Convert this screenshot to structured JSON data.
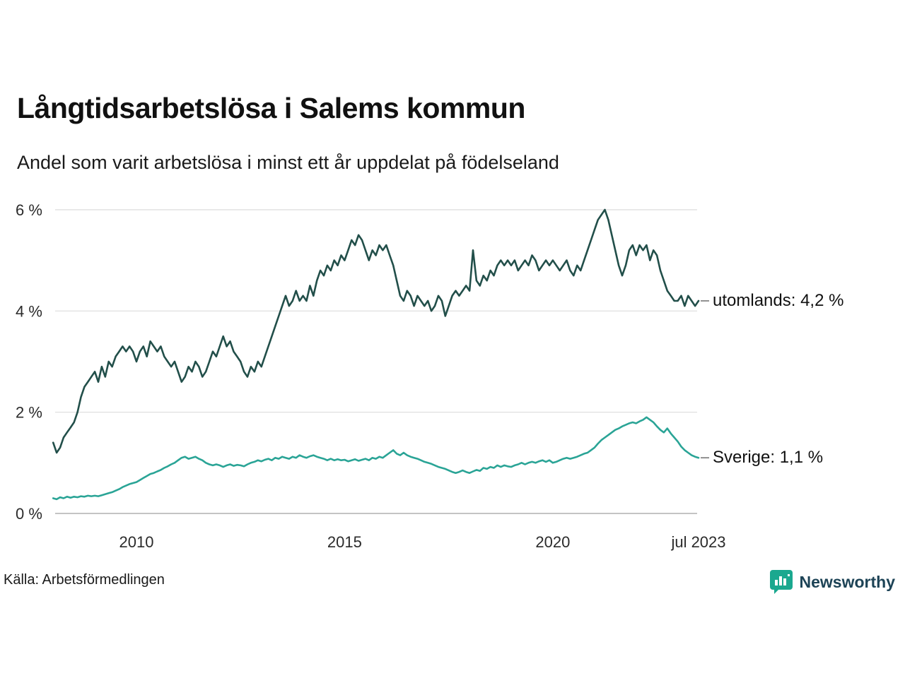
{
  "header": {
    "title": "Långtidsarbetslösa i Salems kommun",
    "subtitle": "Andel som varit arbetslösa i minst ett år uppdelat på födelseland"
  },
  "footer": {
    "source": "Källa: Arbetsförmedlingen",
    "brand": "Newsworthy",
    "brand_icon": "bar-chart-badge-icon",
    "brand_icon_color": "#1aa88f",
    "brand_text_color": "#1d4356"
  },
  "chart_data": {
    "type": "line",
    "title": "Långtidsarbetslösa i Salems kommun",
    "subtitle": "Andel som varit arbetslösa i minst ett år uppdelat på födelseland",
    "grid": "horizontal",
    "legend_position": "right-end-labels",
    "xlim": [
      2007.9,
      2023.6
    ],
    "ylim": [
      0,
      6.3
    ],
    "x_start_year": 2008.0,
    "x_step_years": 0.0833333,
    "x_ticks": [
      {
        "value": 2010,
        "label": "2010"
      },
      {
        "value": 2015,
        "label": "2015"
      },
      {
        "value": 2020,
        "label": "2020"
      },
      {
        "value": 2023.5,
        "label": "jul 2023"
      }
    ],
    "y_ticks": [
      {
        "value": 0,
        "label": "0 %"
      },
      {
        "value": 2,
        "label": "2 %"
      },
      {
        "value": 4,
        "label": "4 %"
      },
      {
        "value": 6,
        "label": "6 %"
      }
    ],
    "series": [
      {
        "name": "utomlands",
        "label": "utomlands: 4,2 %",
        "last_value_label": "4,2 %",
        "color": "#224f4a",
        "values": [
          1.4,
          1.2,
          1.3,
          1.5,
          1.6,
          1.7,
          1.8,
          2.0,
          2.3,
          2.5,
          2.6,
          2.7,
          2.8,
          2.6,
          2.9,
          2.7,
          3.0,
          2.9,
          3.1,
          3.2,
          3.3,
          3.2,
          3.3,
          3.2,
          3.0,
          3.2,
          3.3,
          3.1,
          3.4,
          3.3,
          3.2,
          3.3,
          3.1,
          3.0,
          2.9,
          3.0,
          2.8,
          2.6,
          2.7,
          2.9,
          2.8,
          3.0,
          2.9,
          2.7,
          2.8,
          3.0,
          3.2,
          3.1,
          3.3,
          3.5,
          3.3,
          3.4,
          3.2,
          3.1,
          3.0,
          2.8,
          2.7,
          2.9,
          2.8,
          3.0,
          2.9,
          3.1,
          3.3,
          3.5,
          3.7,
          3.9,
          4.1,
          4.3,
          4.1,
          4.2,
          4.4,
          4.2,
          4.3,
          4.2,
          4.5,
          4.3,
          4.6,
          4.8,
          4.7,
          4.9,
          4.8,
          5.0,
          4.9,
          5.1,
          5.0,
          5.2,
          5.4,
          5.3,
          5.5,
          5.4,
          5.2,
          5.0,
          5.2,
          5.1,
          5.3,
          5.2,
          5.3,
          5.1,
          4.9,
          4.6,
          4.3,
          4.2,
          4.4,
          4.3,
          4.1,
          4.3,
          4.2,
          4.1,
          4.2,
          4.0,
          4.1,
          4.3,
          4.2,
          3.9,
          4.1,
          4.3,
          4.4,
          4.3,
          4.4,
          4.5,
          4.4,
          5.2,
          4.6,
          4.5,
          4.7,
          4.6,
          4.8,
          4.7,
          4.9,
          5.0,
          4.9,
          5.0,
          4.9,
          5.0,
          4.8,
          4.9,
          5.0,
          4.9,
          5.1,
          5.0,
          4.8,
          4.9,
          5.0,
          4.9,
          5.0,
          4.9,
          4.8,
          4.9,
          5.0,
          4.8,
          4.7,
          4.9,
          4.8,
          5.0,
          5.2,
          5.4,
          5.6,
          5.8,
          5.9,
          6.0,
          5.8,
          5.5,
          5.2,
          4.9,
          4.7,
          4.9,
          5.2,
          5.3,
          5.1,
          5.3,
          5.2,
          5.3,
          5.0,
          5.2,
          5.1,
          4.8,
          4.6,
          4.4,
          4.3,
          4.2,
          4.2,
          4.3,
          4.1,
          4.3,
          4.2,
          4.1,
          4.2
        ]
      },
      {
        "name": "Sverige",
        "label": "Sverige: 1,1 %",
        "last_value_label": "1,1 %",
        "color": "#2aa496",
        "values": [
          0.3,
          0.28,
          0.32,
          0.3,
          0.33,
          0.31,
          0.33,
          0.32,
          0.34,
          0.33,
          0.35,
          0.34,
          0.35,
          0.34,
          0.36,
          0.38,
          0.4,
          0.42,
          0.45,
          0.48,
          0.52,
          0.55,
          0.58,
          0.6,
          0.62,
          0.66,
          0.7,
          0.74,
          0.78,
          0.8,
          0.83,
          0.86,
          0.9,
          0.93,
          0.97,
          1.0,
          1.05,
          1.1,
          1.12,
          1.08,
          1.1,
          1.12,
          1.08,
          1.05,
          1.0,
          0.97,
          0.95,
          0.97,
          0.95,
          0.92,
          0.95,
          0.97,
          0.94,
          0.96,
          0.95,
          0.93,
          0.97,
          1.0,
          1.02,
          1.05,
          1.03,
          1.06,
          1.08,
          1.05,
          1.1,
          1.08,
          1.12,
          1.1,
          1.08,
          1.12,
          1.1,
          1.15,
          1.12,
          1.1,
          1.13,
          1.15,
          1.12,
          1.1,
          1.08,
          1.05,
          1.08,
          1.05,
          1.07,
          1.05,
          1.06,
          1.03,
          1.05,
          1.07,
          1.04,
          1.06,
          1.08,
          1.05,
          1.1,
          1.08,
          1.12,
          1.1,
          1.15,
          1.2,
          1.25,
          1.18,
          1.15,
          1.2,
          1.15,
          1.12,
          1.1,
          1.08,
          1.05,
          1.02,
          1.0,
          0.98,
          0.95,
          0.92,
          0.9,
          0.88,
          0.85,
          0.82,
          0.8,
          0.82,
          0.85,
          0.82,
          0.8,
          0.83,
          0.86,
          0.84,
          0.9,
          0.88,
          0.92,
          0.9,
          0.95,
          0.92,
          0.95,
          0.93,
          0.92,
          0.95,
          0.97,
          1.0,
          0.97,
          1.0,
          1.02,
          1.0,
          1.03,
          1.05,
          1.02,
          1.05,
          1.0,
          1.02,
          1.05,
          1.08,
          1.1,
          1.08,
          1.1,
          1.12,
          1.15,
          1.18,
          1.2,
          1.25,
          1.3,
          1.38,
          1.45,
          1.5,
          1.55,
          1.6,
          1.65,
          1.68,
          1.72,
          1.75,
          1.78,
          1.8,
          1.78,
          1.82,
          1.85,
          1.9,
          1.85,
          1.8,
          1.72,
          1.65,
          1.6,
          1.68,
          1.58,
          1.5,
          1.42,
          1.32,
          1.25,
          1.2,
          1.15,
          1.12,
          1.1
        ]
      }
    ]
  }
}
